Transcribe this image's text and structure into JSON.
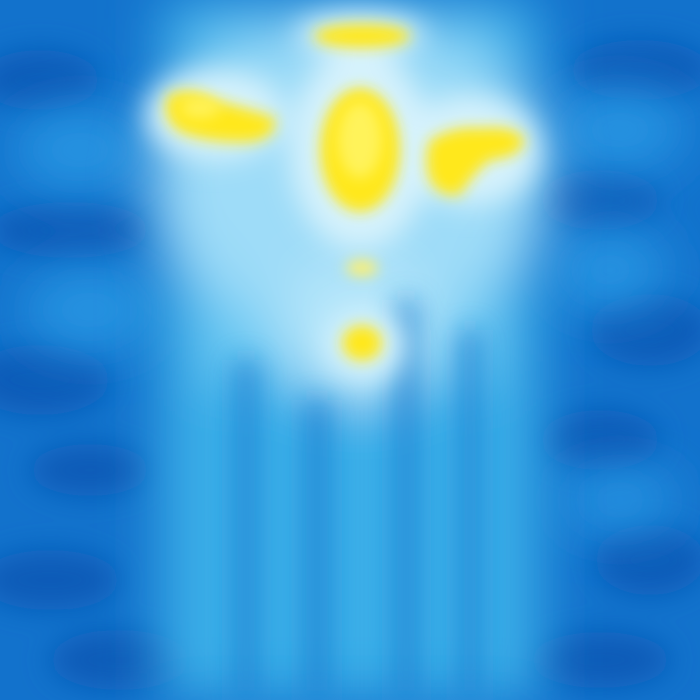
{
  "image": {
    "kind": "thermal-heatmap",
    "palette": {
      "deep": "#0a5cb8",
      "mid": "#1e8fe0",
      "light": "#4fc0f2",
      "pale": "#bfe9fb",
      "hot": "#ffe81a",
      "hot_core": "#fff35a"
    },
    "regions": [
      "hot-ring-top",
      "hot-spot-left",
      "hot-core-center",
      "hot-spot-right",
      "warm-spot-lower"
    ]
  }
}
